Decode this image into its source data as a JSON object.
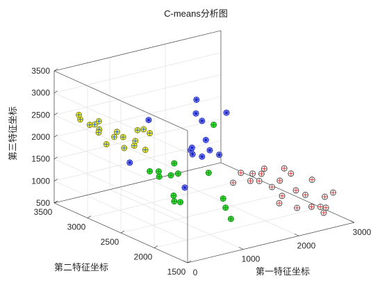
{
  "chart_data": {
    "type": "scatter3d",
    "title": "C-means分析图",
    "xlabel": "第一特征坐标",
    "ylabel": "第二特征坐标",
    "zlabel": "第三特征坐标",
    "xlim": [
      0,
      3000
    ],
    "ylim": [
      1500,
      3500
    ],
    "zlim": [
      500,
      3500
    ],
    "xticks": [
      "0",
      "1000",
      "2000",
      "3000"
    ],
    "yticks": [
      "1500",
      "2000",
      "2500",
      "3000",
      "3500"
    ],
    "zticks": [
      "500",
      "1000",
      "1500",
      "2000",
      "2500",
      "3000",
      "3500"
    ],
    "grid": true,
    "colors": {
      "cluster_1": "#f2f233",
      "cluster_2": "#33e633",
      "cluster_3": "#1a26cc",
      "cluster_4": "#e63333"
    },
    "series": [
      {
        "marker": "yellow-circle-plus",
        "points": [
          [
            50,
            3150,
            2620
          ],
          [
            60,
            3180,
            2700
          ],
          [
            100,
            3050,
            2550
          ],
          [
            150,
            2950,
            2500
          ],
          [
            100,
            2800,
            2280
          ],
          [
            200,
            3000,
            2380
          ],
          [
            250,
            3100,
            2480
          ],
          [
            300,
            3080,
            2550
          ],
          [
            300,
            2850,
            2350
          ],
          [
            350,
            2850,
            2450
          ],
          [
            300,
            2700,
            2200
          ],
          [
            400,
            2800,
            2350
          ],
          [
            420,
            2650,
            2250
          ],
          [
            500,
            2700,
            2300
          ],
          [
            500,
            2550,
            2200
          ],
          [
            600,
            2750,
            2480
          ],
          [
            650,
            2700,
            2520
          ],
          [
            700,
            2650,
            2450
          ]
        ]
      },
      {
        "marker": "green-circle-plus",
        "points": [
          [
            280,
            2300,
            1950
          ],
          [
            330,
            2200,
            1880
          ],
          [
            380,
            2250,
            1950
          ],
          [
            480,
            2150,
            1900
          ],
          [
            550,
            2100,
            1950
          ],
          [
            600,
            2200,
            2100
          ],
          [
            350,
            2000,
            1580
          ],
          [
            350,
            1900,
            1500
          ],
          [
            300,
            1950,
            1500
          ],
          [
            1550,
            2400,
            2550
          ],
          [
            1100,
            2100,
            1800
          ],
          [
            1000,
            1800,
            1450
          ],
          [
            1020,
            1700,
            1050
          ],
          [
            1020,
            1780,
            1250
          ]
        ]
      },
      {
        "marker": "blue-circle-asterisk",
        "points": [
          [
            100,
            2450,
            2100
          ],
          [
            800,
            2750,
            2650
          ],
          [
            550,
            2000,
            1700
          ],
          [
            1050,
            2300,
            2100
          ],
          [
            1080,
            2350,
            2150
          ],
          [
            1100,
            2350,
            2200
          ],
          [
            1100,
            2200,
            2100
          ],
          [
            1350,
            2350,
            2300
          ],
          [
            1300,
            2250,
            2150
          ],
          [
            1350,
            2150,
            2100
          ],
          [
            1350,
            2500,
            2800
          ],
          [
            1400,
            2450,
            2650
          ],
          [
            1600,
            2700,
            2900
          ],
          [
            1900,
            2500,
            2650
          ]
        ]
      },
      {
        "marker": "red-circle-plus",
        "points": [
          [
            1300,
            1900,
            1650
          ],
          [
            1500,
            1950,
            1780
          ],
          [
            1550,
            1850,
            1650
          ],
          [
            1650,
            1800,
            1650
          ],
          [
            1650,
            1900,
            1750
          ],
          [
            1700,
            1650,
            1600
          ],
          [
            1750,
            1850,
            1750
          ],
          [
            1800,
            1850,
            1850
          ],
          [
            1900,
            1700,
            1650
          ],
          [
            2100,
            1800,
            1800
          ],
          [
            2100,
            1700,
            1750
          ],
          [
            1700,
            1500,
            1500
          ],
          [
            1950,
            1500,
            1550
          ],
          [
            2000,
            1400,
            1500
          ],
          [
            2300,
            1550,
            1650
          ],
          [
            1650,
            1500,
            1350
          ],
          [
            1850,
            1400,
            1250
          ],
          [
            2050,
            1350,
            1250
          ],
          [
            2150,
            1300,
            1250
          ],
          [
            2150,
            1250,
            1150
          ],
          [
            2250,
            1300,
            1200
          ],
          [
            2350,
            1400,
            1350
          ],
          [
            2500,
            1400,
            1400
          ]
        ]
      }
    ]
  }
}
